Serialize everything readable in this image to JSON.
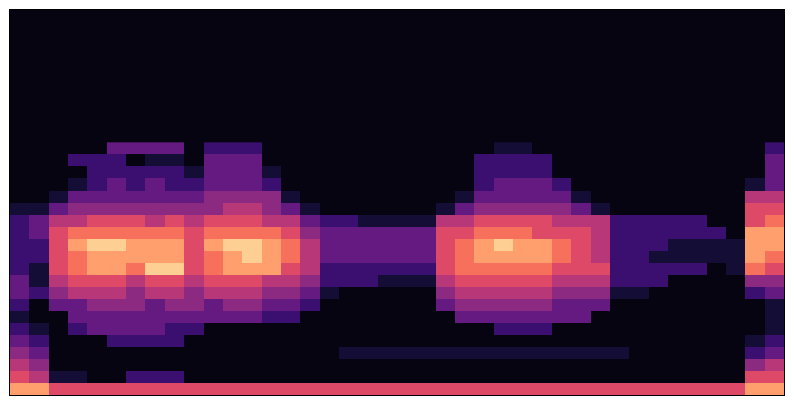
{
  "chart_data": {
    "type": "heatmap",
    "tick_labels": false,
    "xlim": [
      -0.5,
      39.5
    ],
    "ylim": [
      -0.5,
      31.5
    ],
    "zlim": [
      0,
      10
    ],
    "z": [
      [
        8,
        8,
        6,
        6,
        6,
        6,
        6,
        6,
        6,
        6,
        6,
        6,
        6,
        6,
        6,
        6,
        6,
        6,
        6,
        6,
        6,
        6,
        6,
        6,
        6,
        6,
        6,
        6,
        6,
        6,
        6,
        6,
        6,
        6,
        6,
        6,
        6,
        6,
        8,
        8
      ],
      [
        6,
        5,
        1,
        1,
        0,
        0,
        2,
        2,
        2,
        0,
        0,
        0,
        0,
        0,
        0,
        0,
        0,
        0,
        0,
        0,
        0,
        0,
        0,
        0,
        0,
        0,
        0,
        0,
        0,
        0,
        0,
        0,
        0,
        0,
        0,
        0,
        0,
        0,
        6,
        6
      ],
      [
        5,
        4,
        0,
        0,
        0,
        0,
        0,
        0,
        0,
        0,
        0,
        0,
        0,
        0,
        0,
        0,
        0,
        0,
        0,
        0,
        0,
        0,
        0,
        0,
        0,
        0,
        0,
        0,
        0,
        0,
        0,
        0,
        0,
        0,
        0,
        0,
        0,
        0,
        4,
        5
      ],
      [
        4,
        3,
        0,
        0,
        0,
        0,
        0,
        0,
        0,
        0,
        0,
        0,
        0,
        0,
        0,
        0,
        0,
        1,
        1,
        1,
        1,
        1,
        1,
        1,
        1,
        1,
        1,
        1,
        1,
        1,
        1,
        1,
        0,
        0,
        0,
        0,
        0,
        0,
        2,
        3
      ],
      [
        3,
        2,
        0,
        0,
        0,
        2,
        2,
        2,
        2,
        0,
        0,
        0,
        0,
        0,
        0,
        0,
        0,
        0,
        0,
        0,
        0,
        0,
        0,
        0,
        0,
        0,
        0,
        0,
        0,
        0,
        0,
        0,
        0,
        0,
        0,
        0,
        0,
        0,
        1,
        2
      ],
      [
        2,
        1,
        0,
        2,
        3,
        3,
        3,
        3,
        2,
        2,
        0,
        0,
        0,
        0,
        0,
        0,
        0,
        0,
        0,
        0,
        0,
        0,
        0,
        0,
        0,
        2,
        2,
        2,
        0,
        0,
        0,
        0,
        0,
        0,
        0,
        0,
        0,
        0,
        0,
        1
      ],
      [
        1,
        0,
        0,
        3,
        3,
        3,
        3,
        3,
        3,
        3,
        3,
        3,
        3,
        2,
        2,
        0,
        0,
        0,
        0,
        0,
        0,
        0,
        0,
        3,
        3,
        3,
        3,
        3,
        3,
        3,
        0,
        0,
        0,
        0,
        0,
        0,
        0,
        0,
        0,
        1
      ],
      [
        2,
        0,
        3,
        3,
        4,
        4,
        4,
        3,
        4,
        4,
        3,
        4,
        4,
        3,
        3,
        2,
        0,
        0,
        0,
        0,
        0,
        0,
        3,
        4,
        4,
        4,
        4,
        4,
        3,
        3,
        3,
        0,
        0,
        0,
        0,
        0,
        0,
        0,
        0,
        1
      ],
      [
        3,
        2,
        4,
        5,
        5,
        5,
        4,
        5,
        5,
        4,
        5,
        5,
        5,
        4,
        4,
        3,
        1,
        0,
        0,
        0,
        0,
        0,
        4,
        5,
        5,
        5,
        5,
        5,
        4,
        4,
        4,
        1,
        1,
        0,
        0,
        0,
        0,
        0,
        2,
        3
      ],
      [
        3,
        1,
        5,
        6,
        6,
        6,
        5,
        6,
        6,
        5,
        6,
        6,
        6,
        5,
        5,
        4,
        2,
        2,
        2,
        1,
        1,
        1,
        5,
        6,
        6,
        6,
        6,
        6,
        5,
        5,
        5,
        2,
        2,
        2,
        0,
        0,
        0,
        0,
        4,
        4
      ],
      [
        2,
        1,
        6,
        7,
        8,
        8,
        7,
        9,
        9,
        6,
        7,
        8,
        8,
        8,
        6,
        5,
        2,
        2,
        2,
        2,
        2,
        2,
        6,
        7,
        7,
        7,
        7,
        7,
        6,
        6,
        6,
        2,
        2,
        2,
        2,
        2,
        0,
        1,
        7,
        6
      ],
      [
        2,
        2,
        6,
        7,
        8,
        8,
        8,
        8,
        8,
        6,
        7,
        8,
        9,
        8,
        7,
        5,
        3,
        3,
        3,
        3,
        3,
        3,
        6,
        7,
        8,
        8,
        8,
        8,
        7,
        6,
        5,
        2,
        2,
        1,
        1,
        1,
        1,
        1,
        8,
        7
      ],
      [
        2,
        2,
        6,
        8,
        9,
        9,
        8,
        8,
        8,
        6,
        8,
        9,
        9,
        8,
        7,
        5,
        3,
        3,
        3,
        3,
        3,
        3,
        6,
        7,
        8,
        9,
        8,
        8,
        7,
        6,
        5,
        2,
        2,
        2,
        1,
        1,
        1,
        1,
        8,
        8
      ],
      [
        2,
        3,
        6,
        7,
        7,
        7,
        7,
        7,
        7,
        6,
        7,
        7,
        7,
        7,
        6,
        4,
        3,
        3,
        3,
        3,
        3,
        3,
        6,
        6,
        7,
        7,
        7,
        6,
        6,
        6,
        5,
        2,
        2,
        2,
        2,
        2,
        2,
        0,
        8,
        8
      ],
      [
        2,
        3,
        5,
        5,
        6,
        6,
        6,
        5,
        6,
        5,
        6,
        6,
        6,
        5,
        5,
        3,
        2,
        2,
        1,
        1,
        1,
        1,
        5,
        5,
        6,
        6,
        6,
        6,
        5,
        5,
        5,
        2,
        2,
        2,
        2,
        2,
        0,
        0,
        6,
        7
      ],
      [
        1,
        1,
        3,
        4,
        4,
        4,
        4,
        4,
        4,
        4,
        4,
        5,
        5,
        4,
        3,
        1,
        0,
        0,
        0,
        0,
        0,
        0,
        1,
        3,
        4,
        4,
        4,
        4,
        4,
        3,
        1,
        0,
        0,
        0,
        0,
        0,
        0,
        0,
        6,
        6
      ],
      [
        0,
        0,
        1,
        3,
        3,
        3,
        3,
        3,
        3,
        3,
        4,
        4,
        4,
        4,
        1,
        0,
        0,
        0,
        0,
        0,
        0,
        0,
        0,
        1,
        3,
        3,
        3,
        3,
        3,
        1,
        0,
        0,
        0,
        0,
        0,
        0,
        0,
        0,
        5,
        5
      ],
      [
        0,
        0,
        0,
        1,
        2,
        3,
        2,
        3,
        2,
        2,
        3,
        3,
        3,
        2,
        0,
        0,
        0,
        0,
        0,
        0,
        0,
        0,
        0,
        0,
        2,
        3,
        3,
        3,
        2,
        0,
        0,
        0,
        0,
        0,
        0,
        0,
        0,
        0,
        1,
        3
      ],
      [
        0,
        0,
        0,
        0,
        2,
        2,
        2,
        2,
        2,
        1,
        3,
        3,
        3,
        1,
        0,
        0,
        0,
        0,
        0,
        0,
        0,
        0,
        0,
        0,
        2,
        2,
        2,
        2,
        0,
        0,
        0,
        0,
        0,
        0,
        0,
        0,
        0,
        0,
        0,
        3
      ],
      [
        0,
        0,
        0,
        2,
        2,
        2,
        0,
        1,
        1,
        0,
        3,
        3,
        3,
        0,
        0,
        0,
        0,
        0,
        0,
        0,
        0,
        0,
        0,
        0,
        2,
        2,
        2,
        2,
        0,
        0,
        0,
        0,
        0,
        0,
        0,
        0,
        0,
        0,
        0,
        3
      ],
      [
        0,
        0,
        0,
        0,
        0,
        3,
        3,
        3,
        3,
        0,
        2,
        2,
        2,
        0,
        0,
        0,
        0,
        0,
        0,
        0,
        0,
        0,
        0,
        0,
        0,
        1,
        1,
        0,
        0,
        0,
        0,
        0,
        0,
        0,
        0,
        0,
        0,
        0,
        0,
        2
      ]
    ]
  }
}
